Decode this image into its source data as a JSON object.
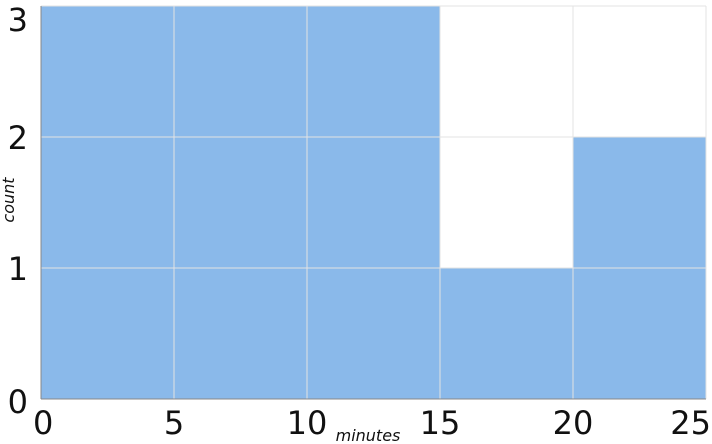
{
  "chart_data": {
    "type": "bar",
    "bins": [
      {
        "x0": 0,
        "x1": 15,
        "value": 3
      },
      {
        "x0": 15,
        "x1": 20,
        "value": 1
      },
      {
        "x0": 20,
        "x1": 25,
        "value": 2
      }
    ],
    "xlabel": "minutes",
    "ylabel": "count",
    "xlim": [
      0,
      25
    ],
    "ylim": [
      0,
      3
    ],
    "xticks": [
      0,
      5,
      10,
      15,
      20,
      25
    ],
    "yticks": [
      0,
      1,
      2,
      3
    ],
    "grid": true,
    "colors": {
      "bar": "#8ab9ea"
    }
  }
}
